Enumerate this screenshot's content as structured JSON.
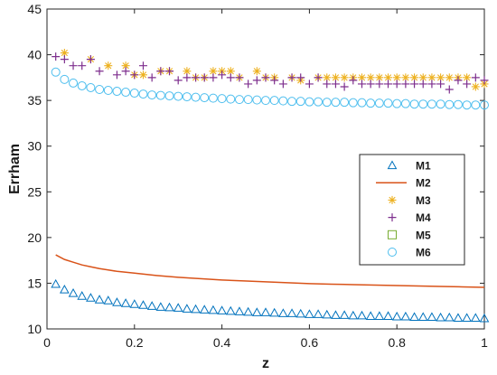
{
  "chart_data": {
    "type": "scatter",
    "xlabel": "z",
    "ylabel": "Errham",
    "xlim": [
      0,
      1
    ],
    "ylim": [
      10,
      45
    ],
    "xticks": [
      "0",
      "0.2",
      "0.4",
      "0.6",
      "0.8",
      "1"
    ],
    "yticks": [
      "10",
      "15",
      "20",
      "25",
      "30",
      "35",
      "40",
      "45"
    ],
    "grid": false,
    "legend": "right",
    "series": [
      {
        "name": "M1",
        "marker": "triangle",
        "color": "#0072BD",
        "x": [
          0.02,
          0.04,
          0.06,
          0.08,
          0.1,
          0.12,
          0.14,
          0.16,
          0.18,
          0.2,
          0.22,
          0.24,
          0.26,
          0.28,
          0.3,
          0.32,
          0.34,
          0.36,
          0.38,
          0.4,
          0.42,
          0.44,
          0.46,
          0.48,
          0.5,
          0.52,
          0.54,
          0.56,
          0.58,
          0.6,
          0.62,
          0.64,
          0.66,
          0.68,
          0.7,
          0.72,
          0.74,
          0.76,
          0.78,
          0.8,
          0.82,
          0.84,
          0.86,
          0.88,
          0.9,
          0.92,
          0.94,
          0.96,
          0.98,
          1.0
        ],
        "y": [
          14.9,
          14.3,
          13.9,
          13.6,
          13.4,
          13.2,
          13.1,
          12.9,
          12.8,
          12.7,
          12.6,
          12.5,
          12.4,
          12.35,
          12.3,
          12.2,
          12.15,
          12.1,
          12.05,
          12.0,
          11.95,
          11.9,
          11.85,
          11.8,
          11.8,
          11.75,
          11.7,
          11.7,
          11.65,
          11.6,
          11.6,
          11.55,
          11.5,
          11.5,
          11.45,
          11.45,
          11.4,
          11.4,
          11.4,
          11.35,
          11.35,
          11.3,
          11.3,
          11.3,
          11.25,
          11.25,
          11.2,
          11.2,
          11.2,
          11.15
        ]
      },
      {
        "name": "M2",
        "marker": "line",
        "color": "#D95319",
        "x": [
          0.02,
          0.04,
          0.06,
          0.08,
          0.1,
          0.12,
          0.14,
          0.16,
          0.18,
          0.2,
          0.25,
          0.3,
          0.35,
          0.4,
          0.45,
          0.5,
          0.55,
          0.6,
          0.65,
          0.7,
          0.75,
          0.8,
          0.85,
          0.9,
          0.95,
          1.0
        ],
        "y": [
          18.1,
          17.6,
          17.3,
          17.0,
          16.8,
          16.6,
          16.45,
          16.3,
          16.2,
          16.1,
          15.85,
          15.65,
          15.5,
          15.35,
          15.25,
          15.15,
          15.05,
          14.95,
          14.9,
          14.85,
          14.8,
          14.75,
          14.7,
          14.65,
          14.6,
          14.55
        ]
      },
      {
        "name": "M3",
        "marker": "asterisk",
        "color": "#EDB120",
        "x": [
          0.04,
          0.1,
          0.14,
          0.18,
          0.2,
          0.22,
          0.26,
          0.28,
          0.32,
          0.34,
          0.36,
          0.38,
          0.4,
          0.42,
          0.44,
          0.48,
          0.5,
          0.52,
          0.56,
          0.58,
          0.62,
          0.64,
          0.66,
          0.68,
          0.7,
          0.72,
          0.74,
          0.76,
          0.78,
          0.8,
          0.82,
          0.84,
          0.86,
          0.88,
          0.9,
          0.92,
          0.94,
          0.96,
          0.98,
          1.0
        ],
        "y": [
          40.2,
          39.5,
          38.8,
          38.8,
          37.8,
          37.8,
          38.2,
          38.2,
          38.2,
          37.5,
          37.5,
          38.2,
          38.2,
          38.2,
          37.5,
          38.2,
          37.5,
          37.5,
          37.5,
          37.2,
          37.5,
          37.5,
          37.5,
          37.5,
          37.5,
          37.5,
          37.5,
          37.5,
          37.5,
          37.5,
          37.5,
          37.5,
          37.5,
          37.5,
          37.5,
          37.5,
          37.5,
          37.5,
          36.5,
          36.8
        ]
      },
      {
        "name": "M4",
        "marker": "plus",
        "color": "#7E2F8E",
        "x": [
          0.02,
          0.04,
          0.06,
          0.08,
          0.1,
          0.12,
          0.16,
          0.18,
          0.2,
          0.22,
          0.24,
          0.26,
          0.28,
          0.3,
          0.32,
          0.34,
          0.36,
          0.38,
          0.4,
          0.42,
          0.44,
          0.46,
          0.48,
          0.5,
          0.52,
          0.54,
          0.56,
          0.58,
          0.6,
          0.62,
          0.64,
          0.66,
          0.68,
          0.7,
          0.72,
          0.74,
          0.76,
          0.78,
          0.8,
          0.82,
          0.84,
          0.86,
          0.88,
          0.9,
          0.92,
          0.94,
          0.96,
          0.98,
          1.0
        ],
        "y": [
          39.8,
          39.5,
          38.8,
          38.8,
          39.5,
          38.2,
          37.8,
          38.2,
          37.8,
          38.8,
          37.5,
          38.2,
          38.2,
          37.2,
          37.5,
          37.5,
          37.5,
          37.5,
          37.8,
          37.5,
          37.5,
          36.8,
          37.2,
          37.5,
          37.2,
          36.8,
          37.5,
          37.5,
          36.8,
          37.5,
          36.8,
          36.8,
          36.5,
          37.2,
          36.8,
          36.8,
          36.8,
          36.8,
          36.8,
          36.8,
          36.8,
          36.8,
          36.8,
          36.8,
          36.2,
          37.2,
          36.8,
          37.5,
          37.2
        ]
      },
      {
        "name": "M5",
        "marker": "square",
        "color": "#77AC30",
        "x": [],
        "y": []
      },
      {
        "name": "M6",
        "marker": "circle",
        "color": "#4DBEEE",
        "x": [
          0.02,
          0.04,
          0.06,
          0.08,
          0.1,
          0.12,
          0.14,
          0.16,
          0.18,
          0.2,
          0.22,
          0.24,
          0.26,
          0.28,
          0.3,
          0.32,
          0.34,
          0.36,
          0.38,
          0.4,
          0.42,
          0.44,
          0.46,
          0.48,
          0.5,
          0.52,
          0.54,
          0.56,
          0.58,
          0.6,
          0.62,
          0.64,
          0.66,
          0.68,
          0.7,
          0.72,
          0.74,
          0.76,
          0.78,
          0.8,
          0.82,
          0.84,
          0.86,
          0.88,
          0.9,
          0.92,
          0.94,
          0.96,
          0.98,
          1.0
        ],
        "y": [
          38.1,
          37.3,
          36.9,
          36.6,
          36.4,
          36.2,
          36.1,
          36.0,
          35.9,
          35.8,
          35.7,
          35.6,
          35.55,
          35.5,
          35.45,
          35.4,
          35.35,
          35.3,
          35.25,
          35.2,
          35.15,
          35.1,
          35.1,
          35.05,
          35.0,
          35.0,
          34.95,
          34.9,
          34.9,
          34.85,
          34.85,
          34.8,
          34.8,
          34.8,
          34.75,
          34.75,
          34.7,
          34.7,
          34.7,
          34.65,
          34.65,
          34.6,
          34.6,
          34.6,
          34.6,
          34.55,
          34.55,
          34.5,
          34.5,
          34.5
        ]
      }
    ]
  }
}
